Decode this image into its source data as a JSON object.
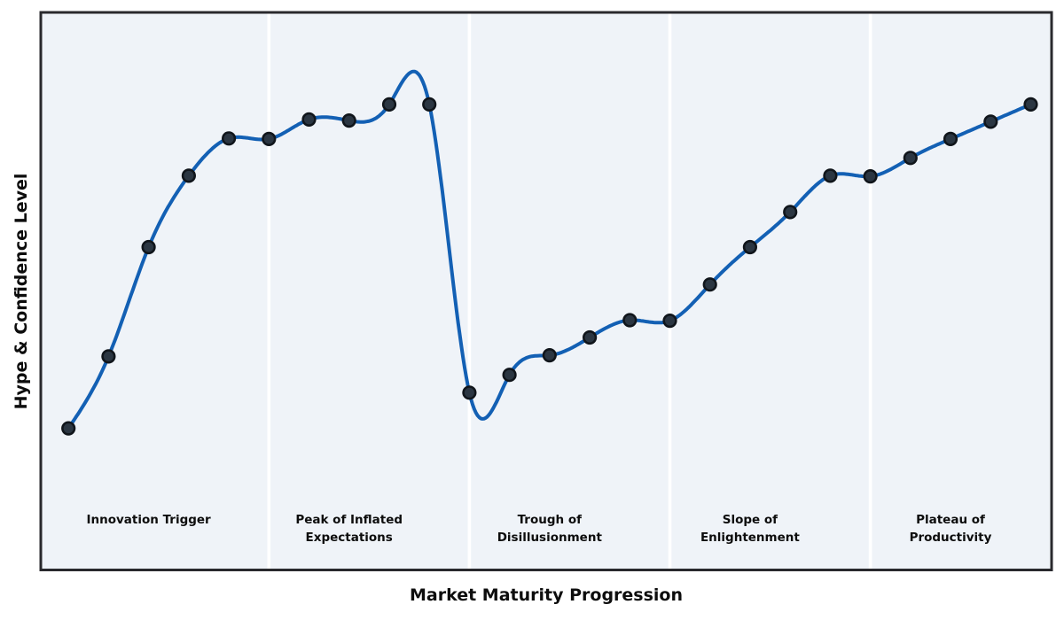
{
  "chart_data": {
    "type": "line",
    "xlabel": "Market Maturity Progression",
    "ylabel": "Hype & Confidence Level",
    "x": [
      0,
      1,
      2,
      3,
      4,
      5,
      6,
      7,
      8,
      9,
      10,
      11,
      12,
      13,
      14,
      15,
      16,
      17,
      18,
      19,
      20,
      21,
      22,
      23,
      24
    ],
    "values": [
      25.4,
      38.3,
      57.9,
      70.7,
      77.4,
      77.3,
      80.8,
      80.6,
      83.5,
      83.5,
      31.8,
      35.0,
      38.5,
      41.7,
      44.8,
      44.7,
      51.2,
      57.9,
      64.2,
      70.7,
      70.6,
      73.9,
      77.3,
      80.4,
      83.5
    ],
    "xlim": [
      -0.69,
      24.52
    ],
    "ylim": [
      0,
      100
    ],
    "grid": false,
    "legend": "none",
    "ticks": "none",
    "smoothing": "cubic-spline",
    "marker": "circle",
    "phases": [
      {
        "label": "Innovation Trigger",
        "lines": [
          "Innovation Trigger"
        ],
        "center_x": 2,
        "range": [
          0,
          5
        ]
      },
      {
        "label": "Peak of Inflated Expectations",
        "lines": [
          "Peak of Inflated",
          "Expectations"
        ],
        "center_x": 7,
        "range": [
          5,
          10
        ]
      },
      {
        "label": "Trough of Disillusionment",
        "lines": [
          "Trough of",
          "Disillusionment"
        ],
        "center_x": 12,
        "range": [
          10,
          15
        ]
      },
      {
        "label": "Slope of Enlightenment",
        "lines": [
          "Slope of",
          "Enlightenment"
        ],
        "center_x": 17,
        "range": [
          15,
          20
        ]
      },
      {
        "label": "Plateau of Productivity",
        "lines": [
          "Plateau of",
          "Productivity"
        ],
        "center_x": 22,
        "range": [
          20,
          24
        ]
      }
    ],
    "separators_x": [
      5,
      10,
      15,
      20
    ],
    "colors": {
      "line": "#1360b4",
      "marker_fill": "#2b3642",
      "marker_edge": "#10151b",
      "plot_background": "#eff3f8",
      "phase_separator": "#ffffff",
      "axes_border": "#29292d",
      "figure_background": "#ffffff",
      "text": "#0d0d0d"
    }
  }
}
